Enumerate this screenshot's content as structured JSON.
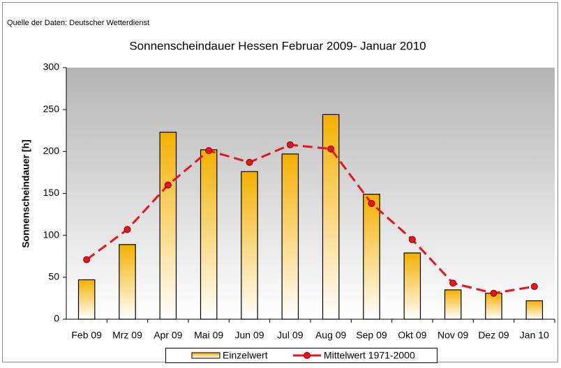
{
  "chart_data": {
    "type": "bar",
    "source": "Quelle der Daten: Deutscher Wetterdienst",
    "title": "Sonnenscheindauer Hessen Februar 2009- Januar 2010",
    "y_label": "Sonnenscheindauer [h]",
    "categories": [
      "Feb 09",
      "Mrz 09",
      "Apr 09",
      "Mai 09",
      "Jun 09",
      "Jul 09",
      "Aug 09",
      "Sep 09",
      "Okt 09",
      "Nov 09",
      "Dez 09",
      "Jan 10"
    ],
    "series": [
      {
        "name": "Einzelwert",
        "type": "bar",
        "color": "#f5b000",
        "values": [
          47,
          89,
          223,
          202,
          176,
          197,
          244,
          149,
          79,
          35,
          31,
          22
        ]
      },
      {
        "name": "Mittelwert 1971-2000",
        "type": "line",
        "color": "#e8141b",
        "values": [
          71,
          107,
          160,
          201,
          187,
          208,
          203,
          138,
          95,
          43,
          31,
          39
        ]
      }
    ],
    "ylim": [
      0,
      300
    ],
    "yticks": [
      0,
      50,
      100,
      150,
      200,
      250,
      300
    ],
    "legend": "bottom"
  }
}
